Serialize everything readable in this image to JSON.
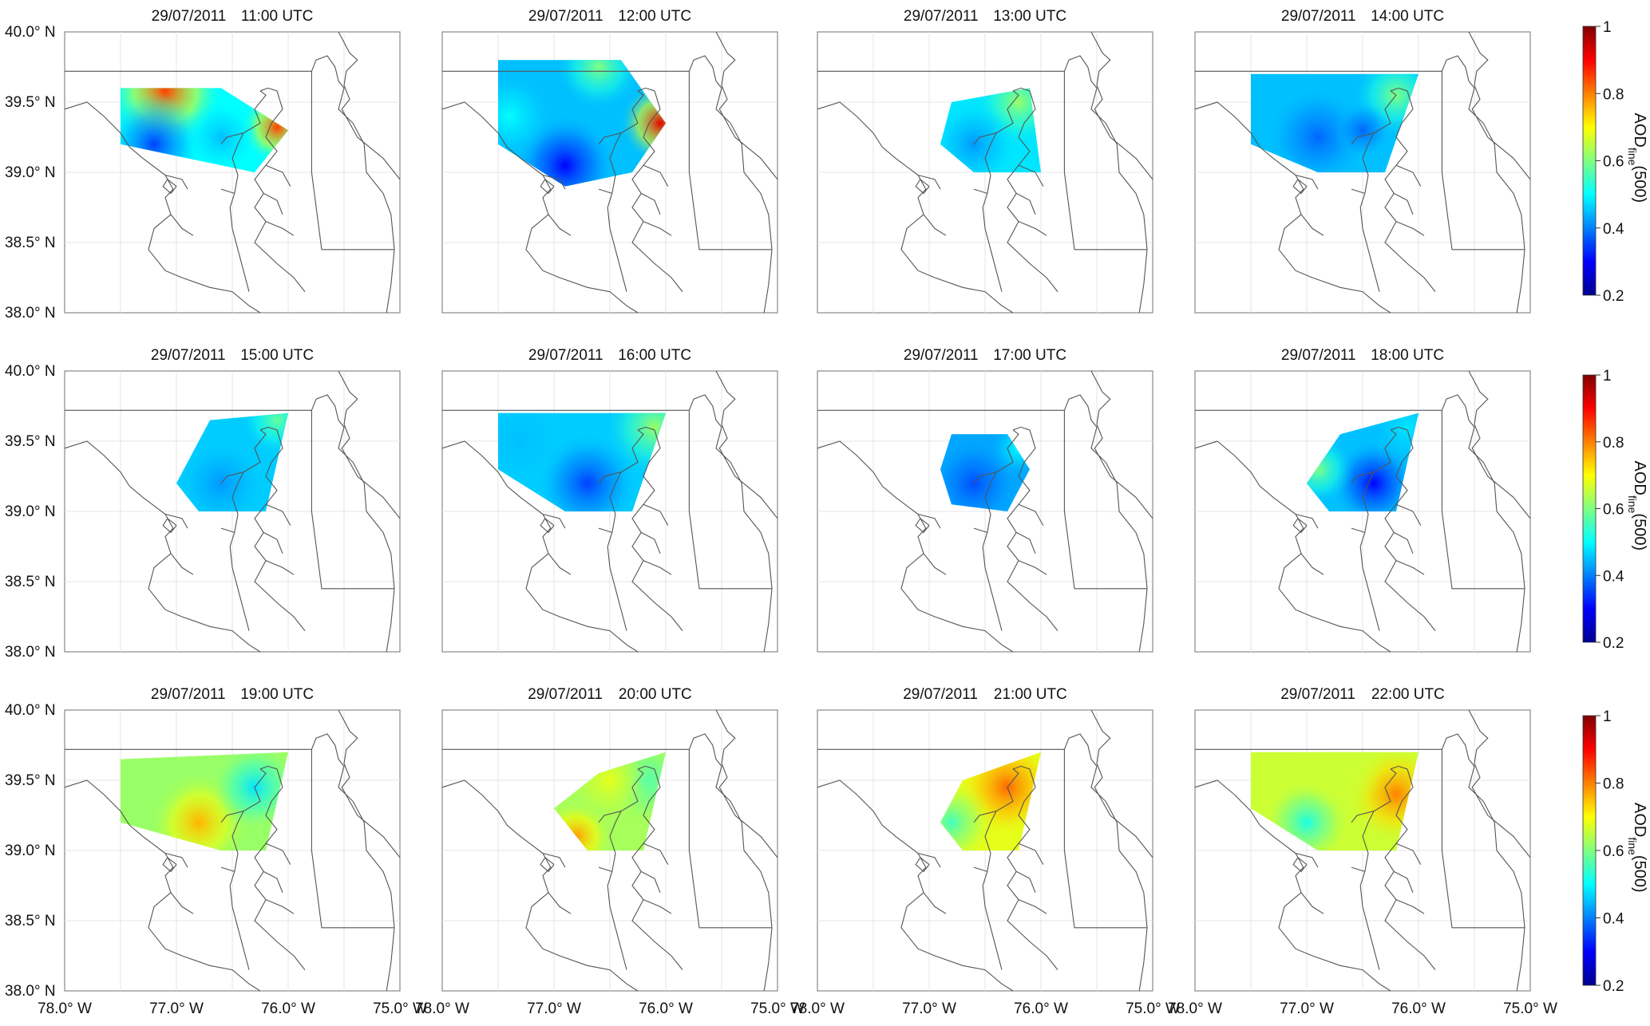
{
  "figure": {
    "panels": [
      {
        "date": "29/07/2011",
        "time": "11:00 UTC"
      },
      {
        "date": "29/07/2011",
        "time": "12:00 UTC"
      },
      {
        "date": "29/07/2011",
        "time": "13:00 UTC"
      },
      {
        "date": "29/07/2011",
        "time": "14:00 UTC"
      },
      {
        "date": "29/07/2011",
        "time": "15:00 UTC"
      },
      {
        "date": "29/07/2011",
        "time": "16:00 UTC"
      },
      {
        "date": "29/07/2011",
        "time": "17:00 UTC"
      },
      {
        "date": "29/07/2011",
        "time": "18:00 UTC"
      },
      {
        "date": "29/07/2011",
        "time": "19:00 UTC"
      },
      {
        "date": "29/07/2011",
        "time": "20:00 UTC"
      },
      {
        "date": "29/07/2011",
        "time": "21:00 UTC"
      },
      {
        "date": "29/07/2011",
        "time": "22:00 UTC"
      }
    ],
    "lat_labels": [
      "40.0° N",
      "39.5° N",
      "39.0° N",
      "38.5° N",
      "38.0° N"
    ],
    "lon_labels": [
      "78.0° W",
      "77.0° W",
      "76.0° W",
      "75.0° W"
    ],
    "colorbar": {
      "ticks": [
        "1",
        "0.8",
        "0.6",
        "0.4",
        "0.2"
      ],
      "label": "AOD",
      "label_sub": "fine",
      "label_tail": "(500)"
    }
  },
  "colors": {
    "colormap": [
      "#00008f",
      "#0000ff",
      "#0080ff",
      "#00ffff",
      "#80ff80",
      "#ffff00",
      "#ff8000",
      "#ff0000",
      "#800000"
    ],
    "outline": "#555555",
    "grid": "#e4e4e4"
  },
  "fields": [
    {
      "poly": [
        [
          -77.5,
          39.6
        ],
        [
          -76.6,
          39.6
        ],
        [
          -76.0,
          39.3
        ],
        [
          -76.3,
          39.0
        ],
        [
          -77.5,
          39.2
        ]
      ],
      "blobs": [
        [
          -77.1,
          39.58,
          0.85,
          0.4
        ],
        [
          -76.1,
          39.32,
          0.85,
          0.25
        ],
        [
          -77.2,
          39.2,
          0.35,
          0.35
        ],
        [
          -76.6,
          39.25,
          0.45,
          0.25
        ]
      ],
      "base": 0.5
    },
    {
      "poly": [
        [
          -77.5,
          39.8
        ],
        [
          -76.4,
          39.8
        ],
        [
          -76.0,
          39.35
        ],
        [
          -76.3,
          39.0
        ],
        [
          -76.9,
          38.9
        ],
        [
          -77.5,
          39.2
        ]
      ],
      "blobs": [
        [
          -76.05,
          39.35,
          0.92,
          0.28
        ],
        [
          -76.9,
          39.05,
          0.3,
          0.35
        ],
        [
          -77.4,
          39.4,
          0.5,
          0.3
        ],
        [
          -76.6,
          39.75,
          0.6,
          0.3
        ]
      ],
      "base": 0.45
    },
    {
      "poly": [
        [
          -76.8,
          39.5
        ],
        [
          -76.1,
          39.6
        ],
        [
          -76.0,
          39.0
        ],
        [
          -76.6,
          39.0
        ],
        [
          -76.9,
          39.2
        ]
      ],
      "blobs": [
        [
          -76.2,
          39.5,
          0.62,
          0.3
        ],
        [
          -76.6,
          39.2,
          0.42,
          0.3
        ]
      ],
      "base": 0.48
    },
    {
      "poly": [
        [
          -77.5,
          39.7
        ],
        [
          -76.0,
          39.7
        ],
        [
          -76.3,
          39.0
        ],
        [
          -76.9,
          39.0
        ],
        [
          -77.5,
          39.2
        ]
      ],
      "blobs": [
        [
          -76.2,
          39.55,
          0.6,
          0.3
        ],
        [
          -76.9,
          39.25,
          0.38,
          0.35
        ],
        [
          -76.5,
          39.3,
          0.38,
          0.2
        ]
      ],
      "base": 0.45
    },
    {
      "poly": [
        [
          -76.7,
          39.65
        ],
        [
          -76.0,
          39.7
        ],
        [
          -76.2,
          39.0
        ],
        [
          -76.8,
          39.0
        ],
        [
          -77.0,
          39.2
        ]
      ],
      "blobs": [
        [
          -76.1,
          39.65,
          0.58,
          0.25
        ],
        [
          -76.6,
          39.2,
          0.42,
          0.3
        ]
      ],
      "base": 0.46
    },
    {
      "poly": [
        [
          -77.5,
          39.7
        ],
        [
          -76.0,
          39.7
        ],
        [
          -76.3,
          39.0
        ],
        [
          -76.9,
          39.0
        ],
        [
          -77.5,
          39.3
        ]
      ],
      "blobs": [
        [
          -76.1,
          39.6,
          0.62,
          0.35
        ],
        [
          -76.7,
          39.2,
          0.35,
          0.35
        ],
        [
          -77.3,
          39.5,
          0.45,
          0.3
        ]
      ],
      "base": 0.46
    },
    {
      "poly": [
        [
          -76.8,
          39.55
        ],
        [
          -76.3,
          39.55
        ],
        [
          -76.1,
          39.3
        ],
        [
          -76.3,
          39.0
        ],
        [
          -76.8,
          39.05
        ],
        [
          -76.9,
          39.3
        ]
      ],
      "blobs": [
        [
          -76.6,
          39.2,
          0.36,
          0.3
        ],
        [
          -76.2,
          39.45,
          0.5,
          0.2
        ]
      ],
      "base": 0.43
    },
    {
      "poly": [
        [
          -76.7,
          39.55
        ],
        [
          -76.0,
          39.7
        ],
        [
          -76.2,
          39.0
        ],
        [
          -76.8,
          39.0
        ],
        [
          -77.0,
          39.2
        ]
      ],
      "blobs": [
        [
          -76.4,
          39.2,
          0.3,
          0.3
        ],
        [
          -76.9,
          39.3,
          0.6,
          0.25
        ],
        [
          -76.1,
          39.6,
          0.48,
          0.25
        ]
      ],
      "base": 0.45
    },
    {
      "poly": [
        [
          -77.5,
          39.65
        ],
        [
          -76.0,
          39.7
        ],
        [
          -76.2,
          39.0
        ],
        [
          -76.6,
          39.0
        ],
        [
          -77.5,
          39.2
        ]
      ],
      "blobs": [
        [
          -76.8,
          39.2,
          0.76,
          0.35
        ],
        [
          -77.4,
          39.5,
          0.62,
          0.4
        ],
        [
          -76.3,
          39.45,
          0.48,
          0.3
        ]
      ],
      "base": 0.62
    },
    {
      "poly": [
        [
          -76.6,
          39.55
        ],
        [
          -76.0,
          39.7
        ],
        [
          -76.2,
          39.0
        ],
        [
          -76.7,
          39.0
        ],
        [
          -77.0,
          39.3
        ]
      ],
      "blobs": [
        [
          -76.8,
          39.1,
          0.78,
          0.25
        ],
        [
          -76.2,
          39.5,
          0.55,
          0.3
        ],
        [
          -76.5,
          39.5,
          0.68,
          0.3
        ]
      ],
      "base": 0.63
    },
    {
      "poly": [
        [
          -76.7,
          39.5
        ],
        [
          -76.0,
          39.7
        ],
        [
          -76.2,
          39.0
        ],
        [
          -76.7,
          39.0
        ],
        [
          -76.9,
          39.2
        ]
      ],
      "blobs": [
        [
          -76.3,
          39.45,
          0.82,
          0.35
        ],
        [
          -76.8,
          39.2,
          0.55,
          0.3
        ]
      ],
      "base": 0.68
    },
    {
      "poly": [
        [
          -77.5,
          39.7
        ],
        [
          -76.0,
          39.7
        ],
        [
          -76.2,
          39.0
        ],
        [
          -76.9,
          39.0
        ],
        [
          -77.5,
          39.3
        ]
      ],
      "blobs": [
        [
          -76.2,
          39.4,
          0.8,
          0.35
        ],
        [
          -77.0,
          39.2,
          0.52,
          0.3
        ],
        [
          -76.7,
          39.6,
          0.66,
          0.3
        ]
      ],
      "base": 0.66
    }
  ]
}
